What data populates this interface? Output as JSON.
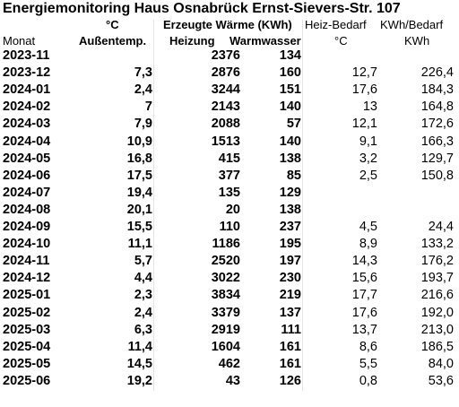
{
  "title": "Energiemonitoring Haus Osnabrück Ernst-Sievers-Str. 107",
  "header": {
    "row1": [
      null,
      "°C",
      "Erzeugte Wärme (KWh)",
      null,
      "Heiz-Bedarf",
      "KWh/Bedarf"
    ],
    "row2": [
      "Monat",
      "Außentemp.",
      "Heizung",
      "Warmwasser",
      "°C",
      "KWh"
    ]
  },
  "table": {
    "rows": [
      [
        "2023-11",
        null,
        "2376",
        "134",
        null,
        null
      ],
      [
        "2023-12",
        "7,3",
        "2876",
        "160",
        "12,7",
        "226,4"
      ],
      [
        "2024-01",
        "2,4",
        "3244",
        "151",
        "17,6",
        "184,3"
      ],
      [
        "2024-02",
        "7",
        "2143",
        "140",
        "13",
        "164,8"
      ],
      [
        "2024-03",
        "7,9",
        "2088",
        "57",
        "12,1",
        "172,6"
      ],
      [
        "2024-04",
        "10,9",
        "1513",
        "140",
        "9,1",
        "166,3"
      ],
      [
        "2024-05",
        "16,8",
        "415",
        "138",
        "3,2",
        "129,7"
      ],
      [
        "2024-06",
        "17,5",
        "377",
        "85",
        "2,5",
        "150,8"
      ],
      [
        "2024-07",
        "19,4",
        "135",
        "129",
        null,
        null
      ],
      [
        "2024-08",
        "20,1",
        "20",
        "138",
        null,
        null
      ],
      [
        "2024-09",
        "15,5",
        "110",
        "237",
        "4,5",
        "24,4"
      ],
      [
        "2024-10",
        "11,1",
        "1186",
        "195",
        "8,9",
        "133,2"
      ],
      [
        "2024-11",
        "5,7",
        "2520",
        "197",
        "14,3",
        "176,2"
      ],
      [
        "2024-12",
        "4,4",
        "3022",
        "230",
        "15,6",
        "193,7"
      ],
      [
        "2025-01",
        "2,3",
        "3834",
        "219",
        "17,7",
        "216,6"
      ],
      [
        "2025-02",
        "2,4",
        "3379",
        "137",
        "17,6",
        "192,0"
      ],
      [
        "2025-03",
        "6,3",
        "2919",
        "111",
        "13,7",
        "213,0"
      ],
      [
        "2025-04",
        "11,4",
        "1604",
        "161",
        "8,6",
        "186,5"
      ],
      [
        "2025-05",
        "14,5",
        "462",
        "161",
        "5,5",
        "84,0"
      ],
      [
        "2025-06",
        "19,2",
        "43",
        "126",
        "0,8",
        "53,6"
      ]
    ]
  }
}
